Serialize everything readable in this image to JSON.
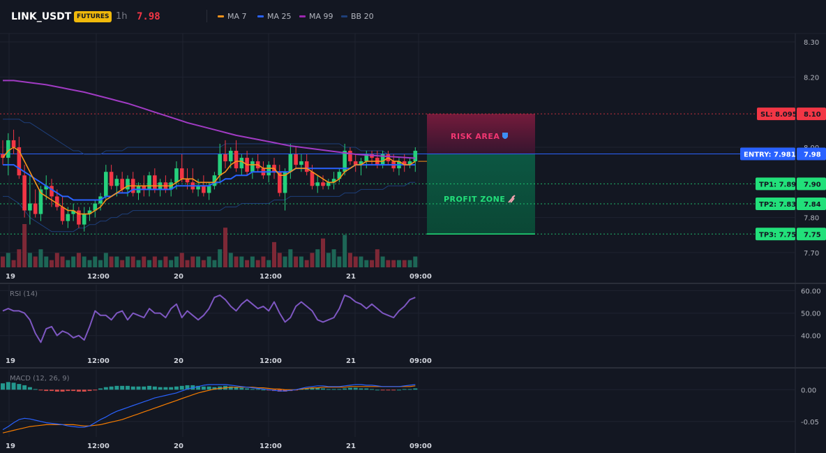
{
  "header": {
    "symbol": "LINK_USDT",
    "badge": "FUTURES",
    "timeframe": "1h",
    "price": "7.98"
  },
  "legend": [
    {
      "label": "MA 7",
      "color": "#f7931a"
    },
    {
      "label": "MA 25",
      "color": "#2962ff"
    },
    {
      "label": "MA 99",
      "color": "#9c27b0"
    },
    {
      "label": "BB 20",
      "color": "#1e3f7a"
    }
  ],
  "colors": {
    "up": "#26d07c",
    "down": "#f23645",
    "grid": "#1f2330"
  },
  "x_ticks": [
    "19",
    "12:00",
    "20",
    "12:00",
    "21",
    "09:00"
  ],
  "zones": {
    "risk_label": "RISK AREA",
    "profit_label": "PROFIT ZONE"
  },
  "levels": [
    {
      "name": "sl",
      "label": "SL: 8.095",
      "axis": "8.10",
      "value": 8.095,
      "color": "#f23645"
    },
    {
      "name": "entry",
      "label": "ENTRY: 7.981",
      "axis": "7.98",
      "value": 7.981,
      "color": "#2962ff"
    },
    {
      "name": "tp1",
      "label": "TP1: 7.896",
      "axis": "7.90",
      "value": 7.896,
      "color": "#22e07a"
    },
    {
      "name": "tp2",
      "label": "TP2: 7.839",
      "axis": "7.84",
      "value": 7.839,
      "color": "#22e07a"
    },
    {
      "name": "tp3",
      "label": "TP3: 7.753",
      "axis": "7.75",
      "value": 7.753,
      "color": "#22e07a"
    }
  ],
  "chart_data": [
    {
      "type": "candlestick",
      "title": "LINK_USDT",
      "y_ticks": [
        "8.30",
        "8.20",
        "8.00",
        "7.80",
        "7.70"
      ],
      "ylim": [
        7.68,
        8.31
      ],
      "candles": [
        [
          7.98,
          8.02,
          7.95,
          7.97
        ],
        [
          7.97,
          8.04,
          7.92,
          8.02
        ],
        [
          8.02,
          8.05,
          7.98,
          8.0
        ],
        [
          8.0,
          8.03,
          7.91,
          7.92
        ],
        [
          7.92,
          7.95,
          7.8,
          7.82
        ],
        [
          7.82,
          7.92,
          7.78,
          7.84
        ],
        [
          7.84,
          7.88,
          7.8,
          7.81
        ],
        [
          7.81,
          7.89,
          7.79,
          7.88
        ],
        [
          7.88,
          7.92,
          7.85,
          7.89
        ],
        [
          7.89,
          7.91,
          7.83,
          7.86
        ],
        [
          7.86,
          7.88,
          7.82,
          7.83
        ],
        [
          7.83,
          7.86,
          7.78,
          7.79
        ],
        [
          7.79,
          7.83,
          7.77,
          7.81
        ],
        [
          7.81,
          7.84,
          7.79,
          7.82
        ],
        [
          7.82,
          7.83,
          7.77,
          7.78
        ],
        [
          7.78,
          7.83,
          7.76,
          7.81
        ],
        [
          7.81,
          7.83,
          7.79,
          7.82
        ],
        [
          7.82,
          7.85,
          7.8,
          7.84
        ],
        [
          7.84,
          7.87,
          7.82,
          7.86
        ],
        [
          7.86,
          7.95,
          7.85,
          7.93
        ],
        [
          7.93,
          7.95,
          7.88,
          7.89
        ],
        [
          7.89,
          7.92,
          7.86,
          7.91
        ],
        [
          7.91,
          7.93,
          7.87,
          7.88
        ],
        [
          7.88,
          7.92,
          7.86,
          7.91
        ],
        [
          7.91,
          7.93,
          7.86,
          7.87
        ],
        [
          7.87,
          7.9,
          7.85,
          7.89
        ],
        [
          7.89,
          7.92,
          7.86,
          7.88
        ],
        [
          7.88,
          7.93,
          7.86,
          7.92
        ],
        [
          7.92,
          7.94,
          7.87,
          7.88
        ],
        [
          7.88,
          7.91,
          7.86,
          7.9
        ],
        [
          7.9,
          7.92,
          7.87,
          7.88
        ],
        [
          7.88,
          7.91,
          7.86,
          7.9
        ],
        [
          7.9,
          7.96,
          7.88,
          7.94
        ],
        [
          7.94,
          7.98,
          7.9,
          7.91
        ],
        [
          7.91,
          7.94,
          7.88,
          7.9
        ],
        [
          7.9,
          7.94,
          7.87,
          7.88
        ],
        [
          7.88,
          7.91,
          7.86,
          7.89
        ],
        [
          7.89,
          7.92,
          7.86,
          7.87
        ],
        [
          7.87,
          7.9,
          7.85,
          7.89
        ],
        [
          7.89,
          7.93,
          7.88,
          7.92
        ],
        [
          7.92,
          8.01,
          7.9,
          7.98
        ],
        [
          7.98,
          8.02,
          7.94,
          7.96
        ],
        [
          7.96,
          8.0,
          7.94,
          7.99
        ],
        [
          7.99,
          8.02,
          7.93,
          7.94
        ],
        [
          7.94,
          7.98,
          7.92,
          7.97
        ],
        [
          7.97,
          7.99,
          7.92,
          7.93
        ],
        [
          7.93,
          7.97,
          7.91,
          7.96
        ],
        [
          7.96,
          7.98,
          7.93,
          7.94
        ],
        [
          7.94,
          7.96,
          7.91,
          7.92
        ],
        [
          7.92,
          7.96,
          7.9,
          7.95
        ],
        [
          7.95,
          7.97,
          7.91,
          7.93
        ],
        [
          7.93,
          7.95,
          7.86,
          7.87
        ],
        [
          7.87,
          7.94,
          7.82,
          7.93
        ],
        [
          7.93,
          8.01,
          7.91,
          7.98
        ],
        [
          7.98,
          8.0,
          7.94,
          7.95
        ],
        [
          7.95,
          7.98,
          7.93,
          7.96
        ],
        [
          7.96,
          7.98,
          7.92,
          7.93
        ],
        [
          7.93,
          7.95,
          7.88,
          7.89
        ],
        [
          7.89,
          7.92,
          7.87,
          7.9
        ],
        [
          7.9,
          7.92,
          7.88,
          7.89
        ],
        [
          7.89,
          7.91,
          7.88,
          7.9
        ],
        [
          7.9,
          7.93,
          7.88,
          7.91
        ],
        [
          7.91,
          7.94,
          7.9,
          7.93
        ],
        [
          7.93,
          8.01,
          7.92,
          7.99
        ],
        [
          7.99,
          8.0,
          7.95,
          7.96
        ],
        [
          7.96,
          7.98,
          7.93,
          7.95
        ],
        [
          7.95,
          7.97,
          7.92,
          7.96
        ],
        [
          7.96,
          7.99,
          7.94,
          7.98
        ],
        [
          7.98,
          7.99,
          7.95,
          7.97
        ],
        [
          7.97,
          7.99,
          7.94,
          7.95
        ],
        [
          7.95,
          7.99,
          7.94,
          7.98
        ],
        [
          7.98,
          7.99,
          7.95,
          7.96
        ],
        [
          7.96,
          7.98,
          7.93,
          7.94
        ],
        [
          7.94,
          7.97,
          7.92,
          7.96
        ],
        [
          7.96,
          7.98,
          7.93,
          7.95
        ],
        [
          7.95,
          7.97,
          7.94,
          7.96
        ],
        [
          7.96,
          8.0,
          7.93,
          7.99
        ]
      ],
      "volume": [
        3,
        4,
        2,
        5,
        12,
        4,
        3,
        5,
        3,
        2,
        4,
        3,
        2,
        3,
        4,
        3,
        2,
        3,
        2,
        4,
        3,
        3,
        2,
        3,
        3,
        2,
        3,
        2,
        3,
        2,
        3,
        2,
        3,
        4,
        2,
        3,
        3,
        2,
        3,
        2,
        5,
        11,
        4,
        3,
        3,
        2,
        3,
        2,
        3,
        2,
        7,
        4,
        3,
        5,
        3,
        3,
        2,
        4,
        5,
        8,
        4,
        5,
        3,
        9,
        4,
        3,
        3,
        2,
        2,
        5,
        3,
        2,
        2,
        2,
        2,
        2,
        3
      ],
      "ma7": [
        7.97,
        7.99,
        8.0,
        7.99,
        7.96,
        7.93,
        7.9,
        7.87,
        7.86,
        7.85,
        7.84,
        7.83,
        7.82,
        7.82,
        7.81,
        7.81,
        7.81,
        7.82,
        7.83,
        7.85,
        7.86,
        7.87,
        7.88,
        7.89,
        7.89,
        7.89,
        7.89,
        7.89,
        7.89,
        7.89,
        7.89,
        7.89,
        7.9,
        7.91,
        7.91,
        7.91,
        7.9,
        7.9,
        7.9,
        7.9,
        7.92,
        7.93,
        7.95,
        7.96,
        7.96,
        7.95,
        7.95,
        7.95,
        7.94,
        7.94,
        7.94,
        7.92,
        7.92,
        7.93,
        7.94,
        7.94,
        7.94,
        7.93,
        7.92,
        7.91,
        7.9,
        7.9,
        7.91,
        7.93,
        7.94,
        7.95,
        7.95,
        7.96,
        7.96,
        7.96,
        7.96,
        7.97,
        7.96,
        7.96,
        7.95,
        7.95,
        7.96
      ],
      "ma25": [
        7.95,
        7.95,
        7.95,
        7.94,
        7.93,
        7.92,
        7.91,
        7.9,
        7.89,
        7.88,
        7.87,
        7.86,
        7.86,
        7.85,
        7.85,
        7.85,
        7.85,
        7.85,
        7.85,
        7.86,
        7.86,
        7.87,
        7.87,
        7.87,
        7.88,
        7.88,
        7.88,
        7.88,
        7.88,
        7.88,
        7.88,
        7.88,
        7.89,
        7.89,
        7.89,
        7.89,
        7.89,
        7.89,
        7.89,
        7.9,
        7.9,
        7.91,
        7.91,
        7.92,
        7.92,
        7.92,
        7.93,
        7.93,
        7.93,
        7.93,
        7.93,
        7.93,
        7.93,
        7.93,
        7.94,
        7.94,
        7.94,
        7.94,
        7.94,
        7.94,
        7.94,
        7.94,
        7.94,
        7.94,
        7.94,
        7.95,
        7.95,
        7.95,
        7.95,
        7.95,
        7.95,
        7.95,
        7.95,
        7.95,
        7.95,
        7.95,
        7.95
      ],
      "ma99": [
        8.19,
        8.19,
        8.19,
        8.188,
        8.186,
        8.184,
        8.182,
        8.18,
        8.178,
        8.175,
        8.172,
        8.169,
        8.166,
        8.163,
        8.16,
        8.157,
        8.153,
        8.149,
        8.145,
        8.141,
        8.137,
        8.133,
        8.129,
        8.125,
        8.12,
        8.115,
        8.11,
        8.105,
        8.1,
        8.095,
        8.09,
        8.085,
        8.08,
        8.075,
        8.07,
        8.066,
        8.062,
        8.058,
        8.054,
        8.05,
        8.046,
        8.042,
        8.038,
        8.034,
        8.031,
        8.028,
        8.025,
        8.022,
        8.019,
        8.016,
        8.013,
        8.01,
        8.007,
        8.004,
        8.002,
        8.0,
        7.998,
        7.996,
        7.994,
        7.992,
        7.99,
        7.988,
        7.986,
        7.984,
        7.982,
        7.98,
        7.979,
        7.978,
        7.977,
        7.976,
        7.975,
        7.974,
        7.973,
        7.972,
        7.971,
        7.97,
        7.969
      ],
      "bb_upper": [
        8.08,
        8.08,
        8.08,
        8.08,
        8.07,
        8.07,
        8.06,
        8.05,
        8.04,
        8.03,
        8.02,
        8.01,
        8.0,
        7.99,
        7.99,
        7.98,
        7.98,
        7.98,
        7.98,
        7.99,
        7.99,
        7.99,
        7.99,
        8.0,
        8.0,
        8.0,
        8.0,
        8.0,
        8.0,
        8.0,
        8.0,
        8.0,
        8.0,
        8.0,
        8.0,
        8.0,
        8.0,
        8.0,
        8.0,
        8.0,
        8.0,
        8.01,
        8.01,
        8.01,
        8.01,
        8.01,
        8.01,
        8.01,
        8.01,
        8.01,
        8.01,
        8.01,
        8.01,
        8.01,
        8.01,
        8.01,
        8.01,
        8.01,
        8.01,
        8.01,
        8.01,
        8.01,
        8.01,
        8.0,
        8.0,
        8.0,
        7.99,
        7.99,
        7.99,
        7.99,
        7.99,
        7.98,
        7.98,
        7.98,
        7.98,
        7.98,
        7.98
      ],
      "bb_lower": [
        7.86,
        7.86,
        7.85,
        7.84,
        7.82,
        7.8,
        7.79,
        7.78,
        7.77,
        7.76,
        7.76,
        7.76,
        7.76,
        7.76,
        7.77,
        7.77,
        7.78,
        7.78,
        7.79,
        7.79,
        7.8,
        7.8,
        7.81,
        7.81,
        7.82,
        7.82,
        7.82,
        7.82,
        7.82,
        7.82,
        7.82,
        7.82,
        7.82,
        7.82,
        7.82,
        7.82,
        7.82,
        7.82,
        7.82,
        7.82,
        7.82,
        7.83,
        7.83,
        7.83,
        7.84,
        7.84,
        7.84,
        7.84,
        7.84,
        7.84,
        7.85,
        7.85,
        7.85,
        7.86,
        7.86,
        7.86,
        7.86,
        7.86,
        7.86,
        7.86,
        7.86,
        7.86,
        7.86,
        7.87,
        7.87,
        7.87,
        7.88,
        7.88,
        7.88,
        7.88,
        7.88,
        7.89,
        7.89,
        7.89,
        7.89,
        7.9,
        7.9
      ]
    },
    {
      "type": "line",
      "title": "RSI (14)",
      "y_ticks": [
        "60.00",
        "50.00",
        "40.00"
      ],
      "ylim": [
        34,
        62
      ],
      "values": [
        51,
        52,
        51,
        51,
        50,
        47,
        41,
        37,
        43,
        44,
        40,
        42,
        41,
        39,
        40,
        38,
        44,
        51,
        49,
        49,
        47,
        50,
        51,
        47,
        50,
        49,
        48,
        52,
        50,
        50,
        48,
        52,
        54,
        48,
        51,
        49,
        47,
        49,
        52,
        57,
        58,
        56,
        53,
        51,
        54,
        56,
        54,
        52,
        53,
        51,
        55,
        50,
        46,
        48,
        53,
        55,
        53,
        51,
        47,
        46,
        47,
        48,
        52,
        58,
        57,
        55,
        54,
        52,
        54,
        52,
        50,
        49,
        48,
        51,
        53,
        56,
        57
      ]
    },
    {
      "type": "bar+line",
      "title": "MACD (12, 26, 9)",
      "y_ticks": [
        "0.00",
        "-0.05"
      ],
      "ylim": [
        -0.07,
        0.03
      ],
      "histogram": [
        0.01,
        0.012,
        0.011,
        0.009,
        0.007,
        0.004,
        0.001,
        -0.001,
        -0.002,
        -0.002,
        -0.003,
        -0.003,
        -0.002,
        -0.002,
        -0.003,
        -0.003,
        -0.002,
        -0.001,
        0.002,
        0.004,
        0.005,
        0.006,
        0.006,
        0.006,
        0.005,
        0.005,
        0.005,
        0.006,
        0.005,
        0.004,
        0.004,
        0.004,
        0.005,
        0.006,
        0.007,
        0.007,
        0.006,
        0.005,
        0.005,
        0.004,
        0.005,
        0.006,
        0.005,
        0.004,
        0.003,
        0.002,
        0.001,
        0.001,
        0.0,
        -0.001,
        -0.002,
        -0.003,
        -0.003,
        -0.002,
        -0.001,
        0.001,
        0.002,
        0.003,
        0.003,
        0.002,
        0.001,
        0.001,
        0.001,
        0.002,
        0.003,
        0.003,
        0.002,
        0.002,
        0.001,
        0.0,
        -0.001,
        -0.001,
        -0.001,
        0.0,
        0.001,
        0.001,
        0.002
      ],
      "macd": [
        -0.063,
        -0.058,
        -0.052,
        -0.047,
        -0.045,
        -0.046,
        -0.048,
        -0.05,
        -0.052,
        -0.053,
        -0.054,
        -0.055,
        -0.057,
        -0.058,
        -0.059,
        -0.059,
        -0.057,
        -0.052,
        -0.047,
        -0.043,
        -0.038,
        -0.034,
        -0.031,
        -0.028,
        -0.025,
        -0.022,
        -0.019,
        -0.016,
        -0.013,
        -0.011,
        -0.009,
        -0.007,
        -0.005,
        -0.002,
        0.001,
        0.003,
        0.005,
        0.007,
        0.008,
        0.008,
        0.008,
        0.008,
        0.007,
        0.006,
        0.005,
        0.004,
        0.003,
        0.002,
        0.001,
        0.0,
        -0.001,
        -0.002,
        -0.002,
        -0.001,
        0.0,
        0.002,
        0.004,
        0.005,
        0.006,
        0.006,
        0.005,
        0.005,
        0.005,
        0.006,
        0.007,
        0.008,
        0.008,
        0.007,
        0.007,
        0.006,
        0.005,
        0.005,
        0.005,
        0.005,
        0.006,
        0.007,
        0.008
      ],
      "signal": [
        -0.068,
        -0.066,
        -0.064,
        -0.062,
        -0.06,
        -0.058,
        -0.057,
        -0.056,
        -0.055,
        -0.055,
        -0.055,
        -0.055,
        -0.055,
        -0.055,
        -0.056,
        -0.057,
        -0.057,
        -0.056,
        -0.055,
        -0.053,
        -0.051,
        -0.049,
        -0.047,
        -0.044,
        -0.041,
        -0.038,
        -0.035,
        -0.032,
        -0.029,
        -0.026,
        -0.023,
        -0.02,
        -0.017,
        -0.014,
        -0.011,
        -0.008,
        -0.005,
        -0.003,
        -0.001,
        0.001,
        0.002,
        0.003,
        0.004,
        0.004,
        0.004,
        0.004,
        0.004,
        0.003,
        0.003,
        0.002,
        0.001,
        0.001,
        0.0,
        0.0,
        0.0,
        0.001,
        0.002,
        0.003,
        0.003,
        0.004,
        0.004,
        0.004,
        0.004,
        0.004,
        0.005,
        0.005,
        0.005,
        0.005,
        0.005,
        0.005,
        0.005,
        0.005,
        0.005,
        0.005,
        0.005,
        0.005,
        0.006
      ]
    }
  ]
}
